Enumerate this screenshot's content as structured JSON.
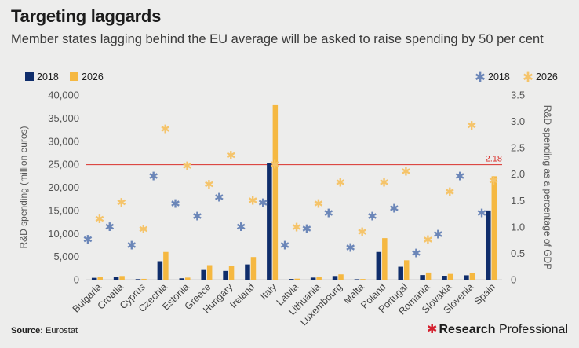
{
  "header": {
    "title": "Targeting laggards",
    "subtitle": "Member states lagging behind the EU average will be asked to raise spending by 50 per cent"
  },
  "footer": {
    "source_label": "Source:",
    "source_value": "Eurostat",
    "brand_star": "✱",
    "brand_bold": "Research",
    "brand_regular": "Professional"
  },
  "colors": {
    "bar_2018": "#0f2d6b",
    "bar_2026": "#f5b841",
    "star_2018": "#6b86b8",
    "star_2026": "#f5c46a",
    "reference_line": "#d9302b"
  },
  "chart_data": {
    "type": "bar",
    "categories": [
      "Bulgaria",
      "Croatia",
      "Cyprus",
      "Czechia",
      "Estonia",
      "Greece",
      "Hungary",
      "Ireland",
      "Italy",
      "Latvia",
      "Lithuania",
      "Luxembourg",
      "Malta",
      "Poland",
      "Portugal",
      "Romania",
      "Slovakia",
      "Slovenia",
      "Spain"
    ],
    "series": [
      {
        "name": "2018",
        "axis": "left",
        "kind": "bar",
        "values": [
          400,
          550,
          120,
          4000,
          300,
          2100,
          1900,
          3300,
          25200,
          150,
          450,
          800,
          100,
          6000,
          2800,
          1000,
          850,
          950,
          15000
        ]
      },
      {
        "name": "2026",
        "axis": "left",
        "kind": "bar",
        "values": [
          600,
          800,
          180,
          6000,
          450,
          3150,
          2900,
          4900,
          37800,
          220,
          650,
          1150,
          150,
          9000,
          4200,
          1550,
          1250,
          1400,
          22400
        ]
      },
      {
        "name": "2018",
        "axis": "right",
        "kind": "star",
        "values": [
          0.76,
          1.0,
          0.65,
          1.96,
          1.44,
          1.2,
          1.56,
          1.0,
          1.45,
          0.65,
          0.96,
          1.26,
          0.6,
          1.2,
          1.35,
          0.5,
          0.86,
          1.96,
          1.26
        ]
      },
      {
        "name": "2026",
        "axis": "right",
        "kind": "star",
        "values": [
          1.15,
          1.46,
          0.95,
          2.85,
          2.15,
          1.8,
          2.35,
          1.5,
          2.18,
          0.99,
          1.44,
          1.84,
          0.9,
          1.84,
          2.05,
          0.75,
          1.66,
          2.92,
          1.88
        ]
      }
    ],
    "legend_left": [
      "2018",
      "2026"
    ],
    "legend_right": [
      "2018",
      "2026"
    ],
    "ylabel": "R&D spending (million euros)",
    "ylabel_right": "R&D spending as a percentage of GDP",
    "ylim": [
      0,
      40000
    ],
    "yticks": [
      "0",
      "5,000",
      "10,000",
      "15,000",
      "20,000",
      "25,000",
      "30,000",
      "35,000",
      "40,000"
    ],
    "ylim_right": [
      0,
      3.5
    ],
    "yticks_right": [
      "0",
      "0.5",
      "1.0",
      "1.5",
      "2.0",
      "2.5",
      "3.0",
      "3.5"
    ],
    "reference_value": 2.18,
    "reference_label": "2.18",
    "grid": false
  }
}
